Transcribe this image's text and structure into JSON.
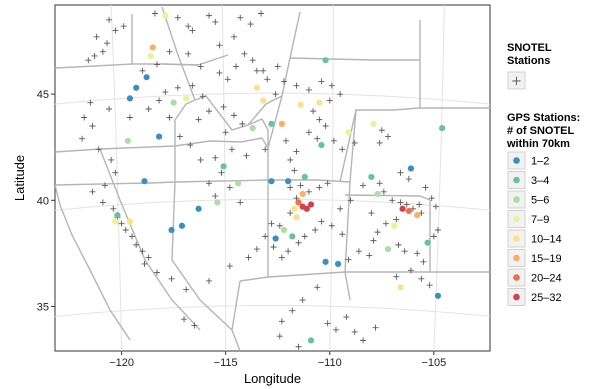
{
  "chart_data": {
    "type": "scatter",
    "xlabel": "Longitude",
    "ylabel": "Latitude",
    "xlim": [
      -123.2,
      -102.3
    ],
    "ylim": [
      32.9,
      49.2
    ],
    "x_ticks": [
      -120,
      -115,
      -110,
      -105
    ],
    "x_tick_labels": [
      "−120",
      "−115",
      "−110",
      "−105"
    ],
    "y_ticks": [
      35,
      40,
      45
    ],
    "y_tick_labels": [
      "35",
      "40",
      "45"
    ],
    "grid": true,
    "legend_position": "right",
    "snotel_legend": {
      "title_lines": [
        "SNOTEL",
        "Stations"
      ],
      "symbol": "+"
    },
    "gps_legend": {
      "title_lines": [
        "GPS Stations:",
        "# of SNOTEL",
        "within 70km"
      ],
      "classes": [
        {
          "label": "1–2",
          "color": "#3a8fc2"
        },
        {
          "label": "3–4",
          "color": "#66c2a5"
        },
        {
          "label": "5–6",
          "color": "#abdda4"
        },
        {
          "label": "7–9",
          "color": "#e6f598"
        },
        {
          "label": "10–14",
          "color": "#fee08b"
        },
        {
          "label": "15–19",
          "color": "#fdae61"
        },
        {
          "label": "20–24",
          "color": "#f46d43"
        },
        {
          "label": "25–32",
          "color": "#d53e4f"
        }
      ]
    },
    "gps_stations": [
      {
        "lon": -118.5,
        "lat": 47.2,
        "c": 5
      },
      {
        "lon": -117.9,
        "lat": 48.7,
        "c": 3
      },
      {
        "lon": -118.8,
        "lat": 45.8,
        "c": 0
      },
      {
        "lon": -118.6,
        "lat": 46.8,
        "c": 3
      },
      {
        "lon": -119.3,
        "lat": 45.3,
        "c": 0
      },
      {
        "lon": -119.6,
        "lat": 44.8,
        "c": 0
      },
      {
        "lon": -117.5,
        "lat": 44.6,
        "c": 2
      },
      {
        "lon": -116.9,
        "lat": 44.8,
        "c": 3
      },
      {
        "lon": -118.2,
        "lat": 43.0,
        "c": 0
      },
      {
        "lon": -119.7,
        "lat": 42.8,
        "c": 2
      },
      {
        "lon": -118.9,
        "lat": 40.9,
        "c": 0
      },
      {
        "lon": -120.2,
        "lat": 39.3,
        "c": 1
      },
      {
        "lon": -120.3,
        "lat": 39.0,
        "c": 3
      },
      {
        "lon": -119.6,
        "lat": 39.0,
        "c": 4
      },
      {
        "lon": -117.6,
        "lat": 38.6,
        "c": 0
      },
      {
        "lon": -117.1,
        "lat": 38.8,
        "c": 0
      },
      {
        "lon": -116.3,
        "lat": 39.6,
        "c": 0
      },
      {
        "lon": -115.4,
        "lat": 39.9,
        "c": 2
      },
      {
        "lon": -115.1,
        "lat": 41.6,
        "c": 1
      },
      {
        "lon": -114.4,
        "lat": 40.8,
        "c": 2
      },
      {
        "lon": -112.8,
        "lat": 40.9,
        "c": 0
      },
      {
        "lon": -112.0,
        "lat": 40.9,
        "c": 0
      },
      {
        "lon": -111.2,
        "lat": 41.1,
        "c": 1
      },
      {
        "lon": -111.3,
        "lat": 40.3,
        "c": 5
      },
      {
        "lon": -111.7,
        "lat": 39.6,
        "c": 4
      },
      {
        "lon": -111.5,
        "lat": 39.9,
        "c": 6
      },
      {
        "lon": -111.3,
        "lat": 39.7,
        "c": 7
      },
      {
        "lon": -111.1,
        "lat": 39.6,
        "c": 7
      },
      {
        "lon": -110.9,
        "lat": 39.8,
        "c": 7
      },
      {
        "lon": -111.6,
        "lat": 39.2,
        "c": 4
      },
      {
        "lon": -112.2,
        "lat": 38.6,
        "c": 2
      },
      {
        "lon": -112.6,
        "lat": 38.2,
        "c": 0
      },
      {
        "lon": -111.8,
        "lat": 38.3,
        "c": 1
      },
      {
        "lon": -110.2,
        "lat": 37.1,
        "c": 0
      },
      {
        "lon": -110.9,
        "lat": 33.4,
        "c": 1
      },
      {
        "lon": -109.6,
        "lat": 37.0,
        "c": 0
      },
      {
        "lon": -111.4,
        "lat": 44.5,
        "c": 4
      },
      {
        "lon": -110.5,
        "lat": 44.6,
        "c": 4
      },
      {
        "lon": -110.2,
        "lat": 46.6,
        "c": 1
      },
      {
        "lon": -110.4,
        "lat": 42.6,
        "c": 1
      },
      {
        "lon": -109.1,
        "lat": 43.2,
        "c": 3
      },
      {
        "lon": -112.8,
        "lat": 43.6,
        "c": 1
      },
      {
        "lon": -112.3,
        "lat": 43.6,
        "c": 5
      },
      {
        "lon": -113.7,
        "lat": 43.4,
        "c": 2
      },
      {
        "lon": -113.5,
        "lat": 45.3,
        "c": 4
      },
      {
        "lon": -113.2,
        "lat": 44.7,
        "c": 4
      },
      {
        "lon": -107.9,
        "lat": 43.6,
        "c": 3
      },
      {
        "lon": -108.0,
        "lat": 41.1,
        "c": 1
      },
      {
        "lon": -107.7,
        "lat": 40.3,
        "c": 2
      },
      {
        "lon": -106.1,
        "lat": 41.5,
        "c": 0
      },
      {
        "lon": -104.6,
        "lat": 43.4,
        "c": 1
      },
      {
        "lon": -106.5,
        "lat": 39.6,
        "c": 7
      },
      {
        "lon": -106.2,
        "lat": 39.5,
        "c": 6
      },
      {
        "lon": -105.8,
        "lat": 39.3,
        "c": 5
      },
      {
        "lon": -105.3,
        "lat": 38.0,
        "c": 1
      },
      {
        "lon": -107.2,
        "lat": 37.7,
        "c": 2
      },
      {
        "lon": -106.6,
        "lat": 35.9,
        "c": 4
      },
      {
        "lon": -104.8,
        "lat": 35.5,
        "c": 0
      },
      {
        "lon": -106.9,
        "lat": 38.8,
        "c": 3
      }
    ],
    "snotel_stations": [
      [
        -121.2,
        47.7
      ],
      [
        -120.7,
        47.4
      ],
      [
        -120.9,
        47.0
      ],
      [
        -121.3,
        46.8
      ],
      [
        -121.6,
        46.6
      ],
      [
        -120.3,
        48.0
      ],
      [
        -120.6,
        48.5
      ],
      [
        -119.9,
        48.2
      ],
      [
        -118.4,
        48.8
      ],
      [
        -117.3,
        48.6
      ],
      [
        -116.8,
        48.2
      ],
      [
        -116.6,
        48.0
      ],
      [
        -115.5,
        48.4
      ],
      [
        -115.8,
        48.7
      ],
      [
        -114.3,
        48.6
      ],
      [
        -113.8,
        48.3
      ],
      [
        -113.3,
        48.8
      ],
      [
        -114.6,
        47.7
      ],
      [
        -115.3,
        47.3
      ],
      [
        -114.1,
        46.9
      ],
      [
        -113.7,
        46.6
      ],
      [
        -114.5,
        46.3
      ],
      [
        -113.2,
        46.1
      ],
      [
        -112.5,
        46.3
      ],
      [
        -112.2,
        45.6
      ],
      [
        -111.6,
        45.4
      ],
      [
        -111.0,
        45.2
      ],
      [
        -110.4,
        45.6
      ],
      [
        -109.9,
        45.4
      ],
      [
        -109.5,
        45.0
      ],
      [
        -110.0,
        44.7
      ],
      [
        -110.8,
        44.2
      ],
      [
        -110.5,
        43.8
      ],
      [
        -110.2,
        43.5
      ],
      [
        -111.0,
        43.2
      ],
      [
        -110.6,
        42.9
      ],
      [
        -109.8,
        42.8
      ],
      [
        -109.4,
        42.4
      ],
      [
        -108.8,
        42.7
      ],
      [
        -107.5,
        43.3
      ],
      [
        -107.2,
        43.0
      ],
      [
        -107.6,
        42.7
      ],
      [
        -106.6,
        41.3
      ],
      [
        -106.2,
        41.0
      ],
      [
        -107.4,
        40.4
      ],
      [
        -107.0,
        40.0
      ],
      [
        -106.6,
        39.9
      ],
      [
        -106.3,
        39.8
      ],
      [
        -106.0,
        39.6
      ],
      [
        -105.7,
        39.8
      ],
      [
        -105.6,
        39.4
      ],
      [
        -106.8,
        39.1
      ],
      [
        -107.3,
        38.9
      ],
      [
        -107.7,
        38.5
      ],
      [
        -107.9,
        38.1
      ],
      [
        -106.7,
        37.9
      ],
      [
        -106.4,
        37.6
      ],
      [
        -105.8,
        37.5
      ],
      [
        -105.5,
        37.1
      ],
      [
        -106.1,
        36.7
      ],
      [
        -105.6,
        36.3
      ],
      [
        -106.8,
        36.4
      ],
      [
        -105.2,
        36.0
      ],
      [
        -108.1,
        37.4
      ],
      [
        -108.6,
        37.6
      ],
      [
        -109.1,
        37.2
      ],
      [
        -109.4,
        38.4
      ],
      [
        -109.9,
        38.8
      ],
      [
        -110.4,
        39.0
      ],
      [
        -110.7,
        38.6
      ],
      [
        -111.2,
        38.3
      ],
      [
        -111.5,
        38.0
      ],
      [
        -112.0,
        37.6
      ],
      [
        -112.3,
        37.3
      ],
      [
        -112.7,
        37.8
      ],
      [
        -112.4,
        38.8
      ],
      [
        -111.9,
        39.4
      ],
      [
        -111.6,
        40.1
      ],
      [
        -111.9,
        40.6
      ],
      [
        -111.4,
        40.7
      ],
      [
        -111.0,
        40.4
      ],
      [
        -110.5,
        40.6
      ],
      [
        -110.1,
        40.8
      ],
      [
        -111.7,
        41.4
      ],
      [
        -111.9,
        41.9
      ],
      [
        -111.6,
        42.3
      ],
      [
        -112.1,
        42.8
      ],
      [
        -113.1,
        42.4
      ],
      [
        -114.0,
        42.1
      ],
      [
        -114.7,
        42.4
      ],
      [
        -115.5,
        42.0
      ],
      [
        -115.2,
        41.3
      ],
      [
        -114.8,
        40.6
      ],
      [
        -114.3,
        39.9
      ],
      [
        -115.5,
        40.2
      ],
      [
        -115.8,
        40.8
      ],
      [
        -116.2,
        41.9
      ],
      [
        -116.7,
        42.6
      ],
      [
        -117.2,
        43.0
      ],
      [
        -117.7,
        43.9
      ],
      [
        -116.3,
        43.8
      ],
      [
        -115.8,
        44.2
      ],
      [
        -115.1,
        44.4
      ],
      [
        -114.6,
        44.0
      ],
      [
        -114.2,
        43.6
      ],
      [
        -115.0,
        43.2
      ],
      [
        -116.1,
        44.9
      ],
      [
        -116.6,
        45.4
      ],
      [
        -117.3,
        45.3
      ],
      [
        -117.9,
        45.1
      ],
      [
        -118.2,
        44.7
      ],
      [
        -118.7,
        44.3
      ],
      [
        -119.6,
        43.9
      ],
      [
        -120.6,
        44.3
      ],
      [
        -121.5,
        44.6
      ],
      [
        -121.8,
        43.9
      ],
      [
        -121.4,
        43.5
      ],
      [
        -121.9,
        42.9
      ],
      [
        -121.1,
        42.4
      ],
      [
        -120.5,
        41.9
      ],
      [
        -120.3,
        41.3
      ],
      [
        -120.8,
        40.7
      ],
      [
        -121.4,
        40.4
      ],
      [
        -120.9,
        39.9
      ],
      [
        -120.4,
        39.6
      ],
      [
        -120.2,
        39.2
      ],
      [
        -120.0,
        38.9
      ],
      [
        -119.8,
        38.6
      ],
      [
        -119.5,
        38.3
      ],
      [
        -119.3,
        37.9
      ],
      [
        -119.0,
        37.6
      ],
      [
        -118.7,
        37.3
      ],
      [
        -118.9,
        37.0
      ],
      [
        -118.3,
        36.6
      ],
      [
        -117.6,
        36.3
      ],
      [
        -116.9,
        35.8
      ],
      [
        -117.0,
        34.4
      ],
      [
        -116.5,
        34.1
      ],
      [
        -115.8,
        36.2
      ],
      [
        -114.8,
        36.9
      ],
      [
        -113.9,
        37.3
      ],
      [
        -113.5,
        37.7
      ],
      [
        -113.1,
        38.3
      ],
      [
        -112.8,
        38.9
      ],
      [
        -112.3,
        34.3
      ],
      [
        -111.8,
        34.8
      ],
      [
        -111.3,
        35.3
      ],
      [
        -110.6,
        35.9
      ],
      [
        -110.1,
        34.2
      ],
      [
        -109.7,
        33.9
      ],
      [
        -109.2,
        34.5
      ],
      [
        -108.8,
        33.8
      ],
      [
        -108.4,
        33.4
      ],
      [
        -107.8,
        34.0
      ],
      [
        -112.4,
        33.6
      ],
      [
        -111.5,
        33.1
      ],
      [
        -109.5,
        39.6
      ],
      [
        -109.0,
        40.0
      ],
      [
        -108.4,
        40.7
      ],
      [
        -108.0,
        39.4
      ],
      [
        -107.6,
        40.8
      ],
      [
        -105.4,
        40.6
      ],
      [
        -105.1,
        40.1
      ],
      [
        -104.9,
        39.7
      ],
      [
        -104.8,
        38.6
      ],
      [
        -105.0,
        38.3
      ],
      [
        -112.6,
        45.0
      ],
      [
        -113.0,
        45.7
      ],
      [
        -113.5,
        46.1
      ],
      [
        -114.9,
        45.7
      ],
      [
        -115.3,
        46.0
      ],
      [
        -116.2,
        46.3
      ],
      [
        -116.8,
        46.9
      ],
      [
        -117.7,
        47.0
      ],
      [
        -118.3,
        46.4
      ],
      [
        -119.0,
        46.1
      ]
    ]
  }
}
